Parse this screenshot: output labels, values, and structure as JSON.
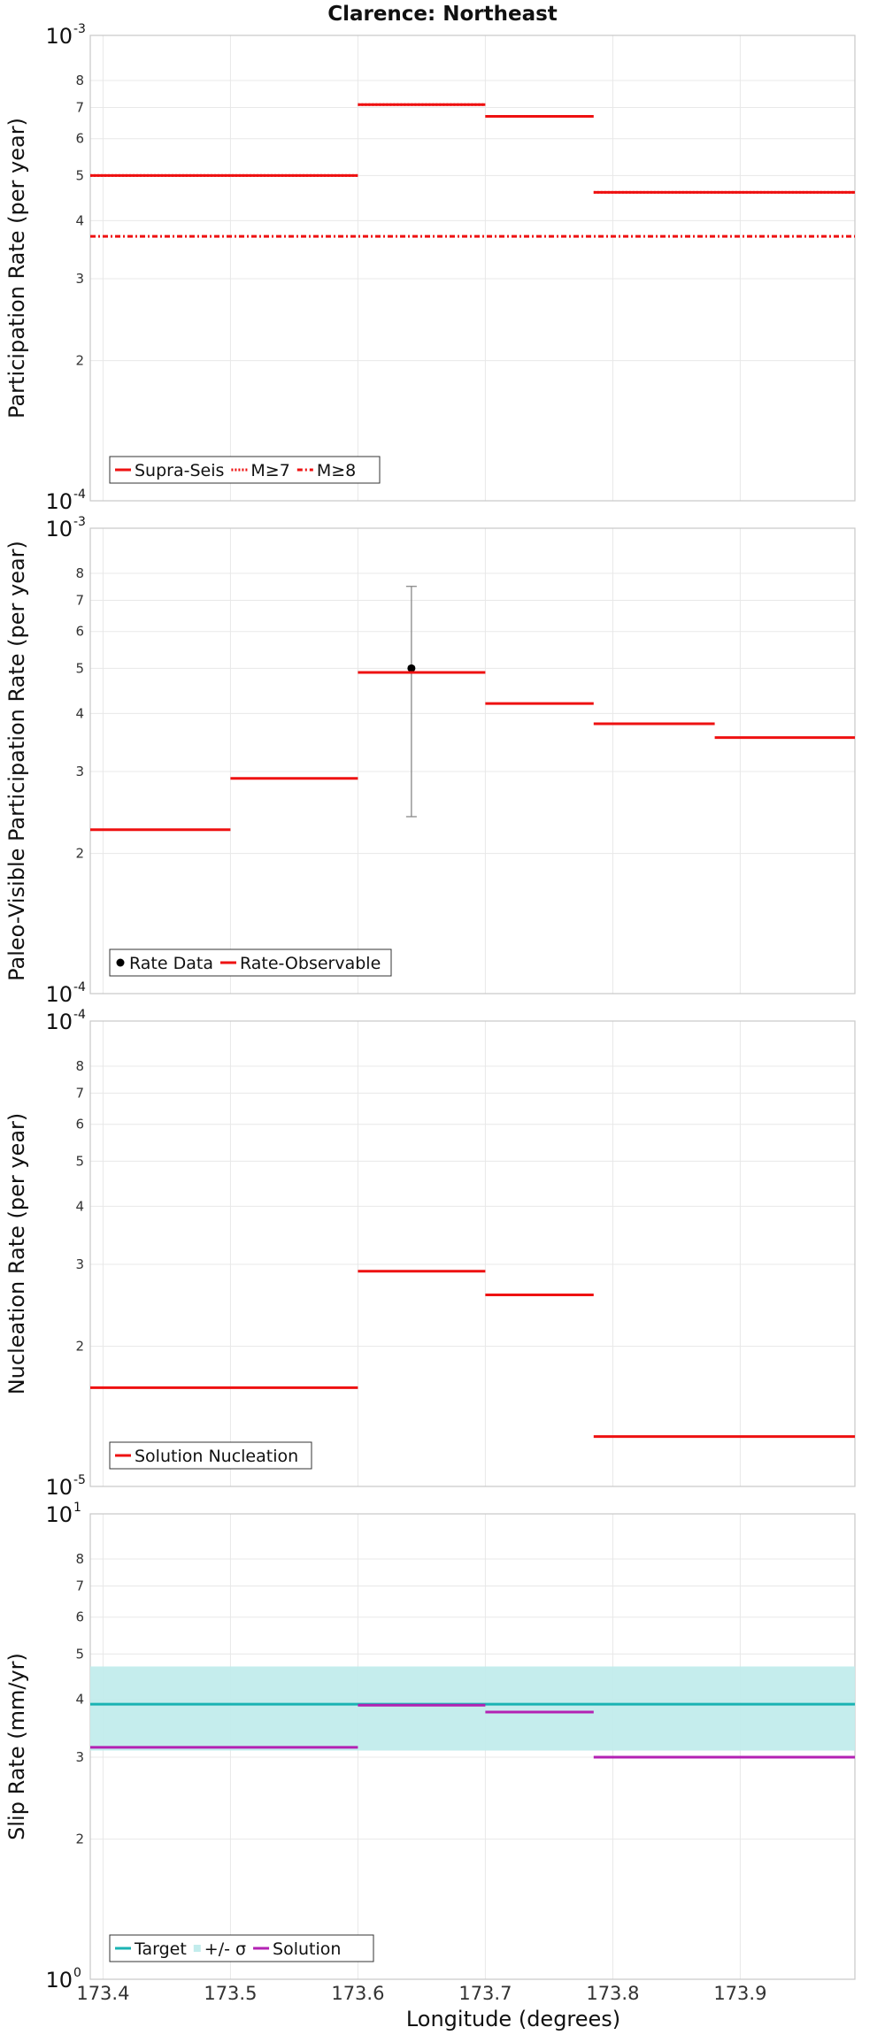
{
  "title": "Clarence: Northeast",
  "xlabel": "Longitude (degrees)",
  "x_tick_labels": [
    "173.4",
    "173.5",
    "173.6",
    "173.7",
    "173.8",
    "173.9"
  ],
  "chart_data": [
    {
      "type": "line",
      "ylabel": "Participation Rate (per year)",
      "xlim": [
        173.39,
        173.99
      ],
      "yscale": "log",
      "ylim": [
        0.0001,
        0.001
      ],
      "ylim_labels": {
        "bottom": {
          "base": "10",
          "exp": "-4"
        },
        "top": {
          "base": "10",
          "exp": "-3"
        }
      },
      "y_minor_ticks": [
        0.0002,
        0.0003,
        0.0004,
        0.0005,
        0.0006,
        0.0007,
        0.0008
      ],
      "y_minor_labels": [
        "2",
        "3",
        "4",
        "5",
        "6",
        "7",
        "8"
      ],
      "grid": true,
      "legend_position": "bottom-left",
      "series": [
        {
          "name": "Supra-Seis",
          "color": "#ee1111",
          "style": "solid",
          "segments": [
            [
              173.39,
              173.6,
              0.0005
            ],
            [
              173.6,
              173.7,
              0.00071
            ],
            [
              173.7,
              173.785,
              0.00067
            ],
            [
              173.785,
              173.99,
              0.00046
            ]
          ]
        },
        {
          "name": "M≥7",
          "color": "#ee1111",
          "style": "dotted",
          "segments": [
            [
              173.39,
              173.6,
              0.0005
            ],
            [
              173.6,
              173.7,
              0.00071
            ],
            [
              173.7,
              173.785,
              0.00067
            ],
            [
              173.785,
              173.99,
              0.00046
            ]
          ]
        },
        {
          "name": "M≥8",
          "color": "#ee1111",
          "style": "dashdot",
          "segments": [
            [
              173.39,
              173.99,
              0.00037
            ]
          ]
        }
      ]
    },
    {
      "type": "line",
      "ylabel": "Paleo-Visible Participation Rate (per year)",
      "xlim": [
        173.39,
        173.99
      ],
      "yscale": "log",
      "ylim": [
        0.0001,
        0.001
      ],
      "ylim_labels": {
        "bottom": {
          "base": "10",
          "exp": "-4"
        },
        "top": {
          "base": "10",
          "exp": "-3"
        }
      },
      "y_minor_ticks": [
        0.0002,
        0.0003,
        0.0004,
        0.0005,
        0.0006,
        0.0007,
        0.0008
      ],
      "y_minor_labels": [
        "2",
        "3",
        "4",
        "5",
        "6",
        "7",
        "8"
      ],
      "grid": true,
      "legend_position": "bottom-left",
      "series": [
        {
          "name": "Rate Data",
          "color": "#000000",
          "style": "point",
          "points": [
            {
              "x": 173.642,
              "y": 0.0005,
              "ylow": 0.00024,
              "yhigh": 0.00075
            }
          ]
        },
        {
          "name": "Rate-Observable",
          "color": "#ee1111",
          "style": "solid",
          "segments": [
            [
              173.39,
              173.5,
              0.000225
            ],
            [
              173.5,
              173.6,
              0.00029
            ],
            [
              173.6,
              173.7,
              0.00049
            ],
            [
              173.7,
              173.785,
              0.00042
            ],
            [
              173.785,
              173.88,
              0.00038
            ],
            [
              173.88,
              173.99,
              0.000355
            ]
          ]
        }
      ]
    },
    {
      "type": "line",
      "ylabel": "Nucleation Rate (per year)",
      "xlim": [
        173.39,
        173.99
      ],
      "yscale": "log",
      "ylim": [
        1e-05,
        0.0001
      ],
      "ylim_labels": {
        "bottom": {
          "base": "10",
          "exp": "-5"
        },
        "top": {
          "base": "10",
          "exp": "-4"
        }
      },
      "y_minor_ticks": [
        2e-05,
        3e-05,
        4e-05,
        5e-05,
        6e-05,
        7e-05,
        8e-05
      ],
      "y_minor_labels": [
        "2",
        "3",
        "4",
        "5",
        "6",
        "7",
        "8"
      ],
      "grid": true,
      "legend_position": "bottom-left",
      "series": [
        {
          "name": "Solution Nucleation",
          "color": "#ee1111",
          "style": "solid",
          "segments": [
            [
              173.39,
              173.6,
              1.63e-05
            ],
            [
              173.6,
              173.7,
              2.9e-05
            ],
            [
              173.7,
              173.785,
              2.58e-05
            ],
            [
              173.785,
              173.99,
              1.28e-05
            ]
          ]
        }
      ]
    },
    {
      "type": "line",
      "ylabel": "Slip Rate (mm/yr)",
      "xlim": [
        173.39,
        173.99
      ],
      "yscale": "log",
      "ylim": [
        1,
        10
      ],
      "ylim_labels": {
        "bottom": {
          "base": "10",
          "exp": "0"
        },
        "top": {
          "base": "10",
          "exp": "1"
        }
      },
      "y_minor_ticks": [
        2,
        3,
        4,
        5,
        6,
        7,
        8
      ],
      "y_minor_labels": [
        "2",
        "3",
        "4",
        "5",
        "6",
        "7",
        "8"
      ],
      "grid": true,
      "legend_position": "bottom-left",
      "band": {
        "name": "+/- σ",
        "color": "#c2ecec",
        "x": [
          173.39,
          173.99
        ],
        "ylow": 3.1,
        "yhigh": 4.7
      },
      "series": [
        {
          "name": "Target",
          "color": "#1ab3b3",
          "style": "solid",
          "segments": [
            [
              173.39,
              173.99,
              3.9
            ]
          ]
        },
        {
          "name": "+/- σ",
          "color": "#c2ecec",
          "style": "band"
        },
        {
          "name": "Solution",
          "color": "#b322b3",
          "style": "solid",
          "segments": [
            [
              173.39,
              173.6,
              3.15
            ],
            [
              173.6,
              173.7,
              3.88
            ],
            [
              173.7,
              173.785,
              3.75
            ],
            [
              173.785,
              173.99,
              3.0
            ]
          ]
        }
      ]
    }
  ]
}
